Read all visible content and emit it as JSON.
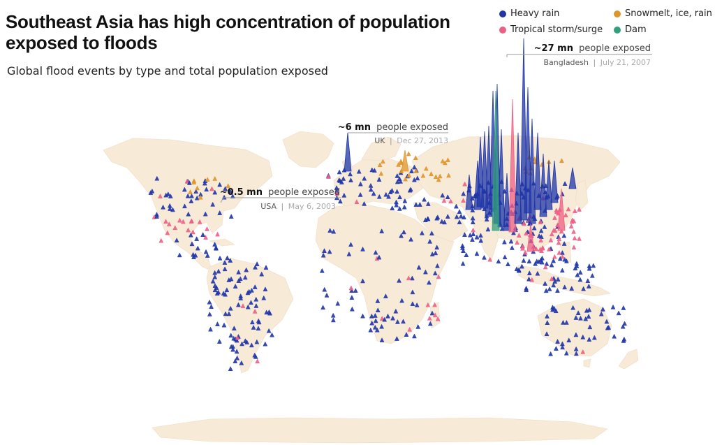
{
  "header": {
    "title": "Southeast Asia has high concentration of population exposed to floods",
    "subtitle": "Global flood events by type and total population exposed"
  },
  "legend": {
    "items": [
      {
        "label": "Heavy rain",
        "color": "#1f35a8"
      },
      {
        "label": "Snowmelt, ice, rain",
        "color": "#e0952a"
      },
      {
        "label": "Tropical storm/surge",
        "color": "#ee5f86"
      },
      {
        "label": "Dam",
        "color": "#2fa07a"
      }
    ]
  },
  "annotations": [
    {
      "amount": "~27 mn",
      "suffix": "people exposed",
      "place": "Bangladesh",
      "date": "July 21, 2007"
    },
    {
      "amount": "~6 mn",
      "suffix": "people exposed",
      "place": "UK",
      "date": "Dec 27, 2013"
    },
    {
      "amount": "~0.5 mn",
      "suffix": "people exposed",
      "place": "USA",
      "date": "May 6, 2003"
    }
  ],
  "colors": {
    "land": "#f7ead7",
    "heavy_rain": "#1f35a8",
    "snowmelt": "#e0952a",
    "storm": "#ee5f86",
    "dam": "#2fa07a"
  }
}
